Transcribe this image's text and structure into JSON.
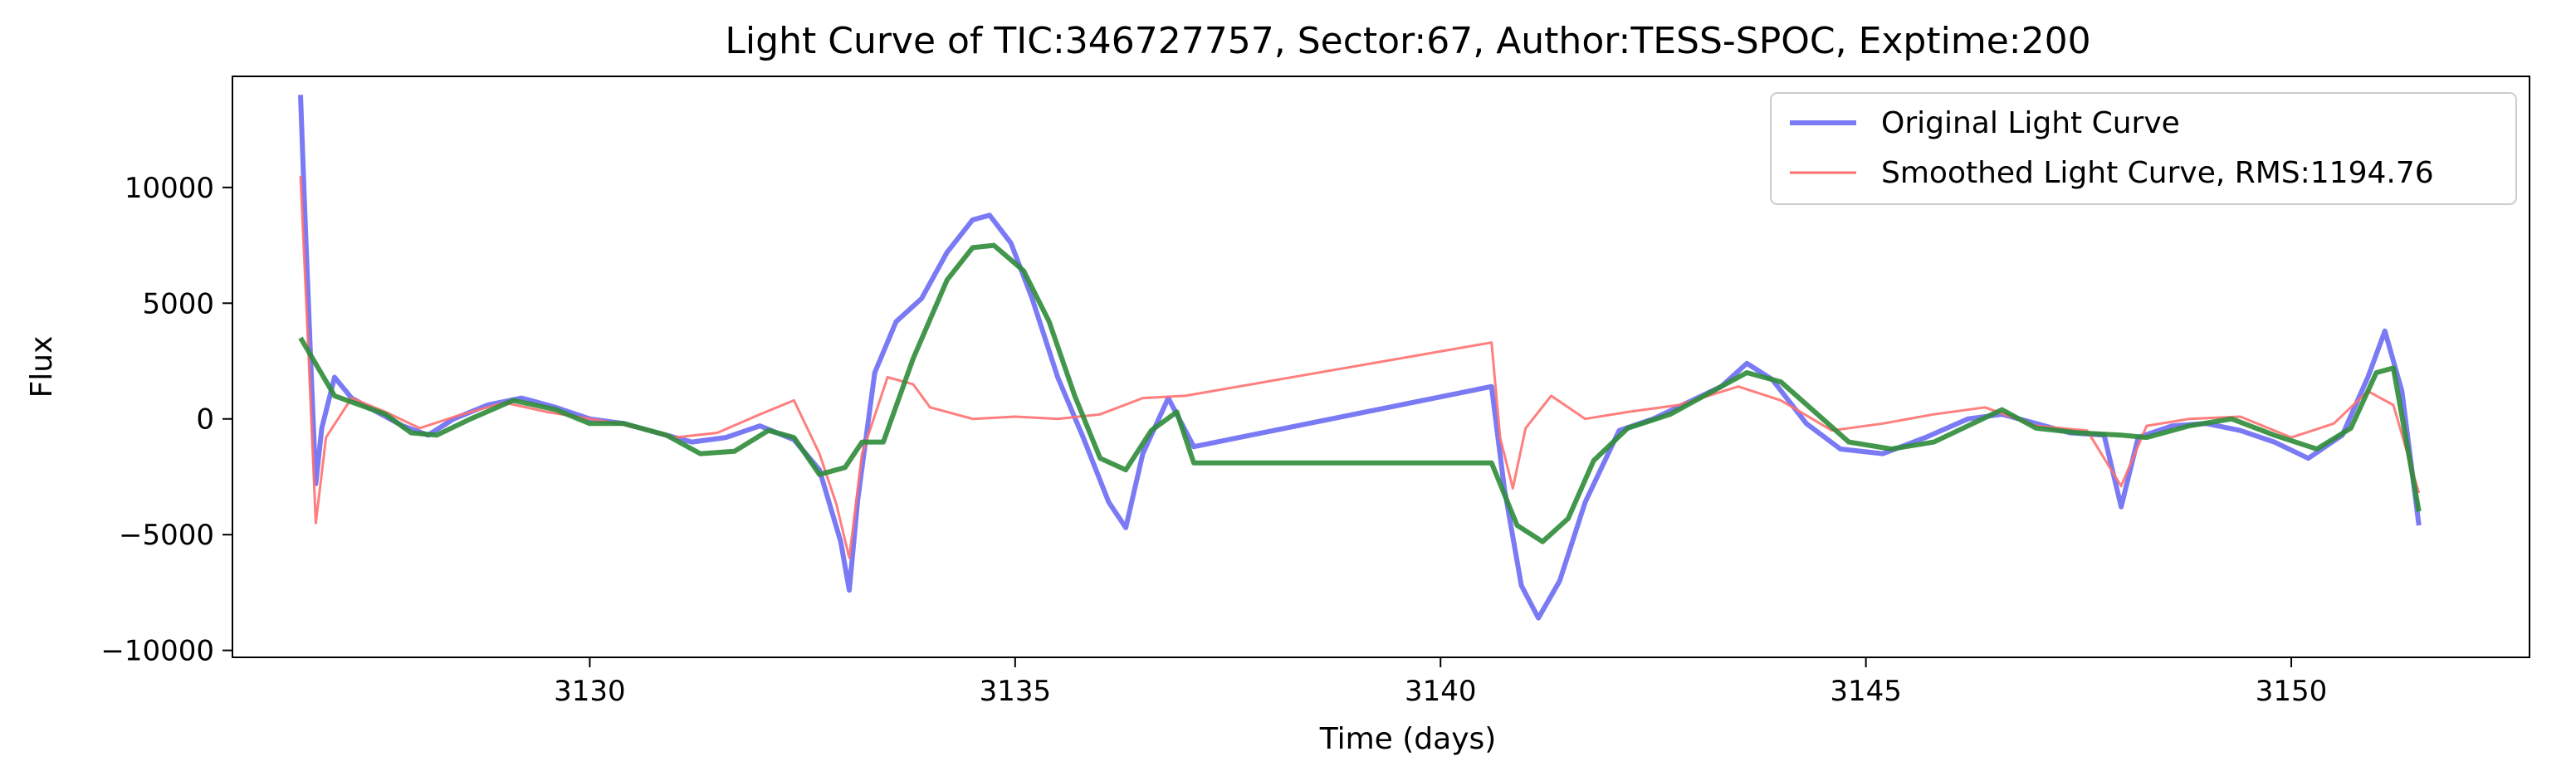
{
  "chart_data": {
    "type": "line",
    "title": "Light Curve of TIC:346727757, Sector:67, Author:TESS-SPOC, Exptime:200",
    "xlabel": "Time (days)",
    "ylabel": "Flux",
    "xlim": [
      3125.8,
      3152.8
    ],
    "ylim": [
      -10300,
      14800
    ],
    "xticks": [
      3130,
      3135,
      3140,
      3145,
      3150
    ],
    "xtick_labels": [
      "3130",
      "3135",
      "3140",
      "3145",
      "3150"
    ],
    "yticks": [
      -10000,
      -5000,
      0,
      5000,
      10000
    ],
    "ytick_labels": [
      "−10000",
      "−5000",
      "0",
      "5000",
      "10000"
    ],
    "grid": false,
    "legend_position": "top-right",
    "series": [
      {
        "name": "Original Light Curve",
        "color": "#7a7af5",
        "points": [
          [
            3126.6,
            14000
          ],
          [
            3126.65,
            9000
          ],
          [
            3126.72,
            2500
          ],
          [
            3126.78,
            -2800
          ],
          [
            3126.85,
            -400
          ],
          [
            3127.0,
            1800
          ],
          [
            3127.2,
            900
          ],
          [
            3127.5,
            300
          ],
          [
            3127.8,
            -300
          ],
          [
            3128.1,
            -700
          ],
          [
            3128.4,
            0
          ],
          [
            3128.8,
            600
          ],
          [
            3129.2,
            900
          ],
          [
            3129.6,
            500
          ],
          [
            3130.0,
            0
          ],
          [
            3130.4,
            -200
          ],
          [
            3130.8,
            -600
          ],
          [
            3131.2,
            -1000
          ],
          [
            3131.6,
            -800
          ],
          [
            3132.0,
            -300
          ],
          [
            3132.4,
            -900
          ],
          [
            3132.7,
            -2200
          ],
          [
            3132.95,
            -5300
          ],
          [
            3133.05,
            -7400
          ],
          [
            3133.15,
            -3500
          ],
          [
            3133.35,
            2000
          ],
          [
            3133.6,
            4200
          ],
          [
            3133.9,
            5200
          ],
          [
            3134.2,
            7200
          ],
          [
            3134.5,
            8600
          ],
          [
            3134.7,
            8800
          ],
          [
            3134.95,
            7600
          ],
          [
            3135.2,
            5200
          ],
          [
            3135.5,
            1800
          ],
          [
            3135.8,
            -800
          ],
          [
            3136.1,
            -3600
          ],
          [
            3136.3,
            -4700
          ],
          [
            3136.5,
            -1500
          ],
          [
            3136.8,
            900
          ],
          [
            3137.1,
            -1200
          ],
          [
            3140.6,
            1400
          ],
          [
            3140.75,
            -3000
          ],
          [
            3140.95,
            -7200
          ],
          [
            3141.15,
            -8600
          ],
          [
            3141.4,
            -7000
          ],
          [
            3141.7,
            -3600
          ],
          [
            3142.1,
            -500
          ],
          [
            3142.5,
            0
          ],
          [
            3142.9,
            700
          ],
          [
            3143.3,
            1400
          ],
          [
            3143.6,
            2400
          ],
          [
            3143.9,
            1700
          ],
          [
            3144.3,
            -200
          ],
          [
            3144.7,
            -1300
          ],
          [
            3145.2,
            -1500
          ],
          [
            3145.7,
            -800
          ],
          [
            3146.2,
            0
          ],
          [
            3146.6,
            200
          ],
          [
            3147.0,
            -200
          ],
          [
            3147.4,
            -600
          ],
          [
            3147.8,
            -700
          ],
          [
            3148.0,
            -3800
          ],
          [
            3148.2,
            -800
          ],
          [
            3148.6,
            -300
          ],
          [
            3149.0,
            -200
          ],
          [
            3149.4,
            -500
          ],
          [
            3149.8,
            -1000
          ],
          [
            3150.2,
            -1700
          ],
          [
            3150.6,
            -700
          ],
          [
            3150.9,
            1800
          ],
          [
            3151.1,
            3800
          ],
          [
            3151.3,
            1200
          ],
          [
            3151.5,
            -4600
          ]
        ]
      },
      {
        "name": "Smoothed Light Curve, RMS:1194.76",
        "color": "#ff7070",
        "points": [
          [
            3126.6,
            10500
          ],
          [
            3126.68,
            4000
          ],
          [
            3126.78,
            -4500
          ],
          [
            3126.9,
            -800
          ],
          [
            3127.2,
            900
          ],
          [
            3127.6,
            300
          ],
          [
            3128.0,
            -400
          ],
          [
            3128.5,
            200
          ],
          [
            3129.0,
            700
          ],
          [
            3129.5,
            300
          ],
          [
            3130.0,
            0
          ],
          [
            3130.5,
            -300
          ],
          [
            3131.0,
            -800
          ],
          [
            3131.5,
            -600
          ],
          [
            3132.0,
            200
          ],
          [
            3132.4,
            800
          ],
          [
            3132.7,
            -1500
          ],
          [
            3132.9,
            -3700
          ],
          [
            3133.05,
            -6000
          ],
          [
            3133.2,
            -1500
          ],
          [
            3133.5,
            1800
          ],
          [
            3133.8,
            1500
          ],
          [
            3134.0,
            500
          ],
          [
            3134.5,
            0
          ],
          [
            3135.0,
            100
          ],
          [
            3135.5,
            0
          ],
          [
            3136.0,
            200
          ],
          [
            3136.5,
            900
          ],
          [
            3137.0,
            1000
          ],
          [
            3140.6,
            3300
          ],
          [
            3140.7,
            -800
          ],
          [
            3140.85,
            -3000
          ],
          [
            3141.0,
            -400
          ],
          [
            3141.3,
            1000
          ],
          [
            3141.7,
            0
          ],
          [
            3142.2,
            300
          ],
          [
            3142.8,
            600
          ],
          [
            3143.5,
            1400
          ],
          [
            3144.0,
            800
          ],
          [
            3144.6,
            -500
          ],
          [
            3145.2,
            -200
          ],
          [
            3145.8,
            200
          ],
          [
            3146.4,
            500
          ],
          [
            3147.0,
            -300
          ],
          [
            3147.6,
            -500
          ],
          [
            3148.0,
            -2900
          ],
          [
            3148.3,
            -300
          ],
          [
            3148.8,
            0
          ],
          [
            3149.4,
            100
          ],
          [
            3150.0,
            -800
          ],
          [
            3150.5,
            -200
          ],
          [
            3150.9,
            1200
          ],
          [
            3151.2,
            600
          ],
          [
            3151.5,
            -3200
          ]
        ]
      },
      {
        "name": "",
        "color": "#2f8c3a",
        "points": [
          [
            3126.6,
            3500
          ],
          [
            3127.0,
            1000
          ],
          [
            3127.3,
            600
          ],
          [
            3127.6,
            200
          ],
          [
            3127.9,
            -600
          ],
          [
            3128.2,
            -700
          ],
          [
            3128.6,
            0
          ],
          [
            3129.1,
            800
          ],
          [
            3129.6,
            400
          ],
          [
            3130.0,
            -200
          ],
          [
            3130.4,
            -200
          ],
          [
            3130.9,
            -700
          ],
          [
            3131.3,
            -1500
          ],
          [
            3131.7,
            -1400
          ],
          [
            3132.1,
            -500
          ],
          [
            3132.4,
            -800
          ],
          [
            3132.7,
            -2400
          ],
          [
            3133.0,
            -2100
          ],
          [
            3133.2,
            -1000
          ],
          [
            3133.45,
            -1000
          ],
          [
            3133.8,
            2600
          ],
          [
            3134.2,
            6000
          ],
          [
            3134.5,
            7400
          ],
          [
            3134.75,
            7500
          ],
          [
            3135.1,
            6400
          ],
          [
            3135.4,
            4200
          ],
          [
            3135.7,
            1000
          ],
          [
            3136.0,
            -1700
          ],
          [
            3136.3,
            -2200
          ],
          [
            3136.6,
            -500
          ],
          [
            3136.9,
            300
          ],
          [
            3137.1,
            -1900
          ],
          [
            3140.6,
            -1900
          ],
          [
            3140.9,
            -4600
          ],
          [
            3141.2,
            -5300
          ],
          [
            3141.5,
            -4300
          ],
          [
            3141.8,
            -1800
          ],
          [
            3142.2,
            -400
          ],
          [
            3142.7,
            200
          ],
          [
            3143.2,
            1200
          ],
          [
            3143.6,
            2000
          ],
          [
            3144.0,
            1600
          ],
          [
            3144.4,
            300
          ],
          [
            3144.8,
            -1000
          ],
          [
            3145.3,
            -1300
          ],
          [
            3145.8,
            -1000
          ],
          [
            3146.2,
            -300
          ],
          [
            3146.6,
            400
          ],
          [
            3147.0,
            -400
          ],
          [
            3147.5,
            -600
          ],
          [
            3148.0,
            -700
          ],
          [
            3148.3,
            -800
          ],
          [
            3148.8,
            -300
          ],
          [
            3149.3,
            0
          ],
          [
            3149.8,
            -700
          ],
          [
            3150.3,
            -1300
          ],
          [
            3150.7,
            -400
          ],
          [
            3151.0,
            2000
          ],
          [
            3151.2,
            2200
          ],
          [
            3151.5,
            -4000
          ]
        ]
      }
    ]
  }
}
